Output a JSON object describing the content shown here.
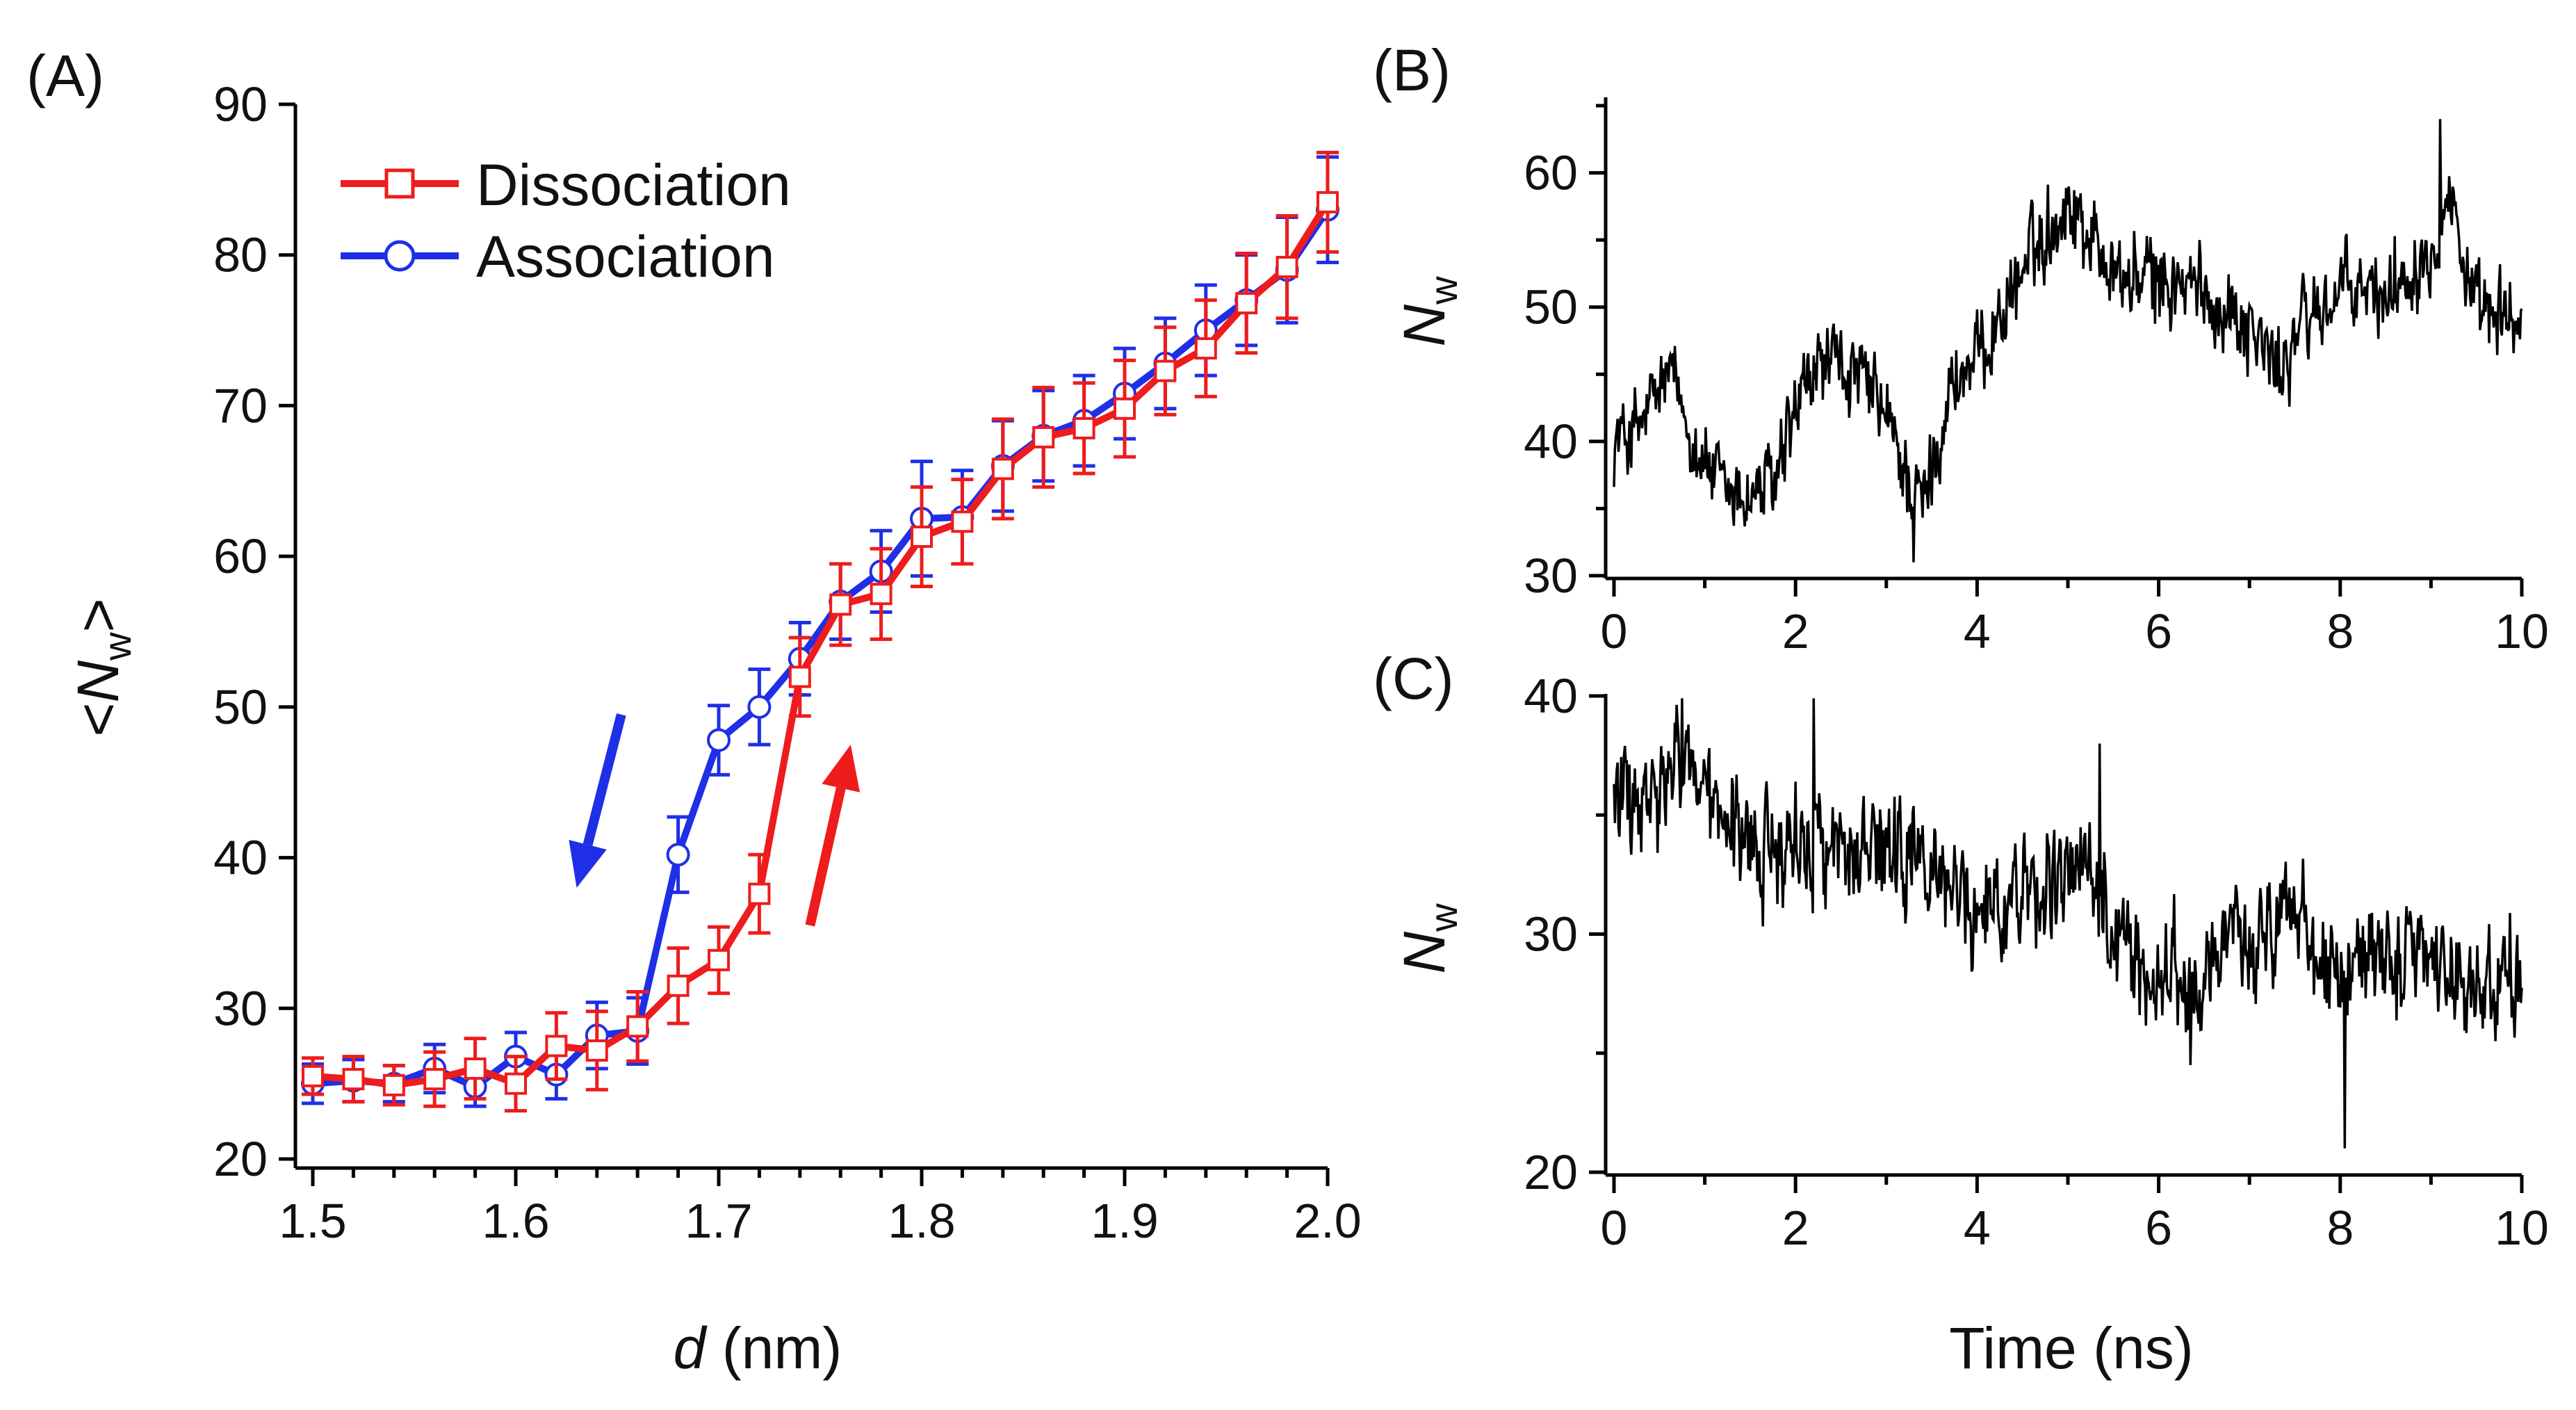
{
  "chart_data": [
    {
      "panel": "(A)",
      "type": "line",
      "xlabel_italic": "d",
      "xlabel_rest": " (nm)",
      "ylabel_left": "<",
      "ylabel_var": "N",
      "ylabel_sub": "w",
      "ylabel_right": ">",
      "xlim": [
        1.5,
        2.0
      ],
      "ylim": [
        20,
        90
      ],
      "xticks": [
        1.5,
        1.6,
        1.7,
        1.8,
        1.9,
        2.0
      ],
      "xtick_labels": [
        "1.5",
        "1.6",
        "1.7",
        "1.8",
        "1.9",
        "2.0"
      ],
      "yticks": [
        20,
        30,
        40,
        50,
        60,
        70,
        80,
        90
      ],
      "ytick_labels": [
        "20",
        "30",
        "40",
        "50",
        "60",
        "70",
        "80",
        "90"
      ],
      "legend_position": "top-left",
      "series": [
        {
          "name": "Association",
          "color": "#1f2fe6",
          "marker": "circle",
          "x": [
            1.5,
            1.52,
            1.54,
            1.56,
            1.58,
            1.6,
            1.62,
            1.64,
            1.66,
            1.68,
            1.7,
            1.72,
            1.74,
            1.76,
            1.78,
            1.8,
            1.82,
            1.84,
            1.86,
            1.88,
            1.9,
            1.92,
            1.94,
            1.96,
            1.98,
            2.0
          ],
          "y": [
            25.0,
            25.2,
            25.0,
            26.0,
            24.8,
            26.8,
            25.6,
            28.2,
            28.5,
            40.2,
            47.8,
            50.0,
            53.2,
            57.0,
            59.0,
            62.5,
            62.6,
            66.0,
            68.0,
            69.0,
            70.8,
            72.8,
            75.0,
            77.0,
            79.0,
            83.0
          ],
          "err": [
            1.3,
            1.4,
            1.2,
            1.6,
            1.3,
            1.6,
            1.6,
            2.2,
            2.2,
            2.5,
            2.3,
            2.5,
            2.4,
            2.5,
            2.7,
            3.8,
            3.1,
            3.0,
            3.0,
            3.0,
            3.0,
            3.0,
            3.0,
            3.0,
            3.5,
            3.5
          ]
        },
        {
          "name": "Dissociation",
          "color": "#ee1c1c",
          "marker": "square",
          "x": [
            1.5,
            1.52,
            1.54,
            1.56,
            1.58,
            1.6,
            1.62,
            1.64,
            1.66,
            1.68,
            1.7,
            1.72,
            1.74,
            1.76,
            1.78,
            1.8,
            1.82,
            1.84,
            1.86,
            1.88,
            1.9,
            1.92,
            1.94,
            1.96,
            1.98,
            2.0
          ],
          "y": [
            25.5,
            25.3,
            24.9,
            25.3,
            26.0,
            25.0,
            27.5,
            27.2,
            28.8,
            31.5,
            33.2,
            37.6,
            52.0,
            56.8,
            57.5,
            61.3,
            62.3,
            65.8,
            67.9,
            68.5,
            69.8,
            72.3,
            73.8,
            76.8,
            79.2,
            83.5
          ],
          "err": [
            1.2,
            1.5,
            1.3,
            1.8,
            2.0,
            1.8,
            2.2,
            2.6,
            2.3,
            2.5,
            2.2,
            2.6,
            2.6,
            2.7,
            3.0,
            3.3,
            2.8,
            3.3,
            3.3,
            3.0,
            3.2,
            2.9,
            3.2,
            3.3,
            3.4,
            3.3
          ]
        }
      ],
      "annotations": [
        {
          "type": "arrow",
          "color": "#1f2fe6",
          "direction": "down",
          "from": [
            1.652,
            49.5
          ],
          "to": [
            1.63,
            38.0
          ]
        },
        {
          "type": "arrow",
          "color": "#ee1c1c",
          "direction": "up",
          "from": [
            1.745,
            35.5
          ],
          "to": [
            1.765,
            47.5
          ]
        }
      ]
    },
    {
      "panel": "(B)",
      "type": "line",
      "xlabel": "",
      "ylabel_var": "N",
      "ylabel_sub": "w",
      "xlim": [
        0,
        10
      ],
      "ylim": [
        30,
        65
      ],
      "xticks": [
        0,
        2,
        4,
        6,
        8,
        10
      ],
      "xtick_labels": [
        "0",
        "2",
        "4",
        "6",
        "8",
        "10"
      ],
      "yticks": [
        30,
        40,
        50,
        60
      ],
      "ytick_labels": [
        "30",
        "40",
        "50",
        "60"
      ],
      "color": "#000000",
      "n_points": 1000,
      "trend": {
        "x": [
          0,
          0.3,
          0.6,
          0.9,
          1.2,
          1.5,
          1.8,
          2.0,
          2.3,
          2.6,
          2.9,
          3.2,
          3.4,
          3.7,
          4.0,
          4.3,
          4.6,
          5.0,
          5.3,
          5.6,
          6.0,
          6.5,
          7.0,
          7.3,
          7.6,
          8.0,
          8.5,
          9.0,
          9.2,
          9.5,
          10.0
        ],
        "y": [
          40,
          41,
          45,
          40,
          36,
          36,
          37,
          42,
          46,
          45,
          43,
          38,
          35,
          44,
          46,
          50,
          54,
          58,
          55,
          52,
          52,
          51,
          49,
          45,
          49,
          51,
          51,
          55,
          59,
          49,
          49
        ]
      },
      "noise": 2.2,
      "spikes": [
        [
          9.1,
          64
        ],
        [
          3.3,
          31
        ]
      ]
    },
    {
      "panel": "(C)",
      "type": "line",
      "xlabel": "Time (ns)",
      "ylabel_var": "N",
      "ylabel_sub": "w",
      "xlim": [
        0,
        10
      ],
      "ylim": [
        20,
        40
      ],
      "xticks": [
        0,
        2,
        4,
        6,
        8,
        10
      ],
      "xtick_labels": [
        "0",
        "2",
        "4",
        "6",
        "8",
        "10"
      ],
      "yticks": [
        20,
        30,
        40
      ],
      "ytick_labels": [
        "20",
        "30",
        "40"
      ],
      "color": "#000000",
      "n_points": 1000,
      "trend": {
        "x": [
          0,
          0.3,
          0.6,
          0.8,
          1.0,
          1.5,
          2.0,
          2.3,
          2.8,
          3.2,
          3.6,
          4.0,
          4.5,
          5.0,
          5.3,
          5.5,
          5.8,
          6.2,
          6.6,
          7.0,
          7.4,
          7.8,
          8.2,
          8.6,
          9.0,
          9.4,
          10.0
        ],
        "y": [
          36,
          35,
          36,
          38,
          35,
          33.5,
          34,
          34,
          33,
          33,
          32.5,
          31,
          32,
          32,
          33.5,
          30,
          28.5,
          28,
          28.5,
          30,
          31,
          29,
          29,
          29,
          28.5,
          28,
          28
        ]
      },
      "noise": 1.6,
      "spikes": [
        [
          8.05,
          21
        ],
        [
          0.75,
          40
        ],
        [
          2.2,
          40
        ],
        [
          5.35,
          38
        ],
        [
          6.35,
          24.5
        ]
      ]
    }
  ]
}
